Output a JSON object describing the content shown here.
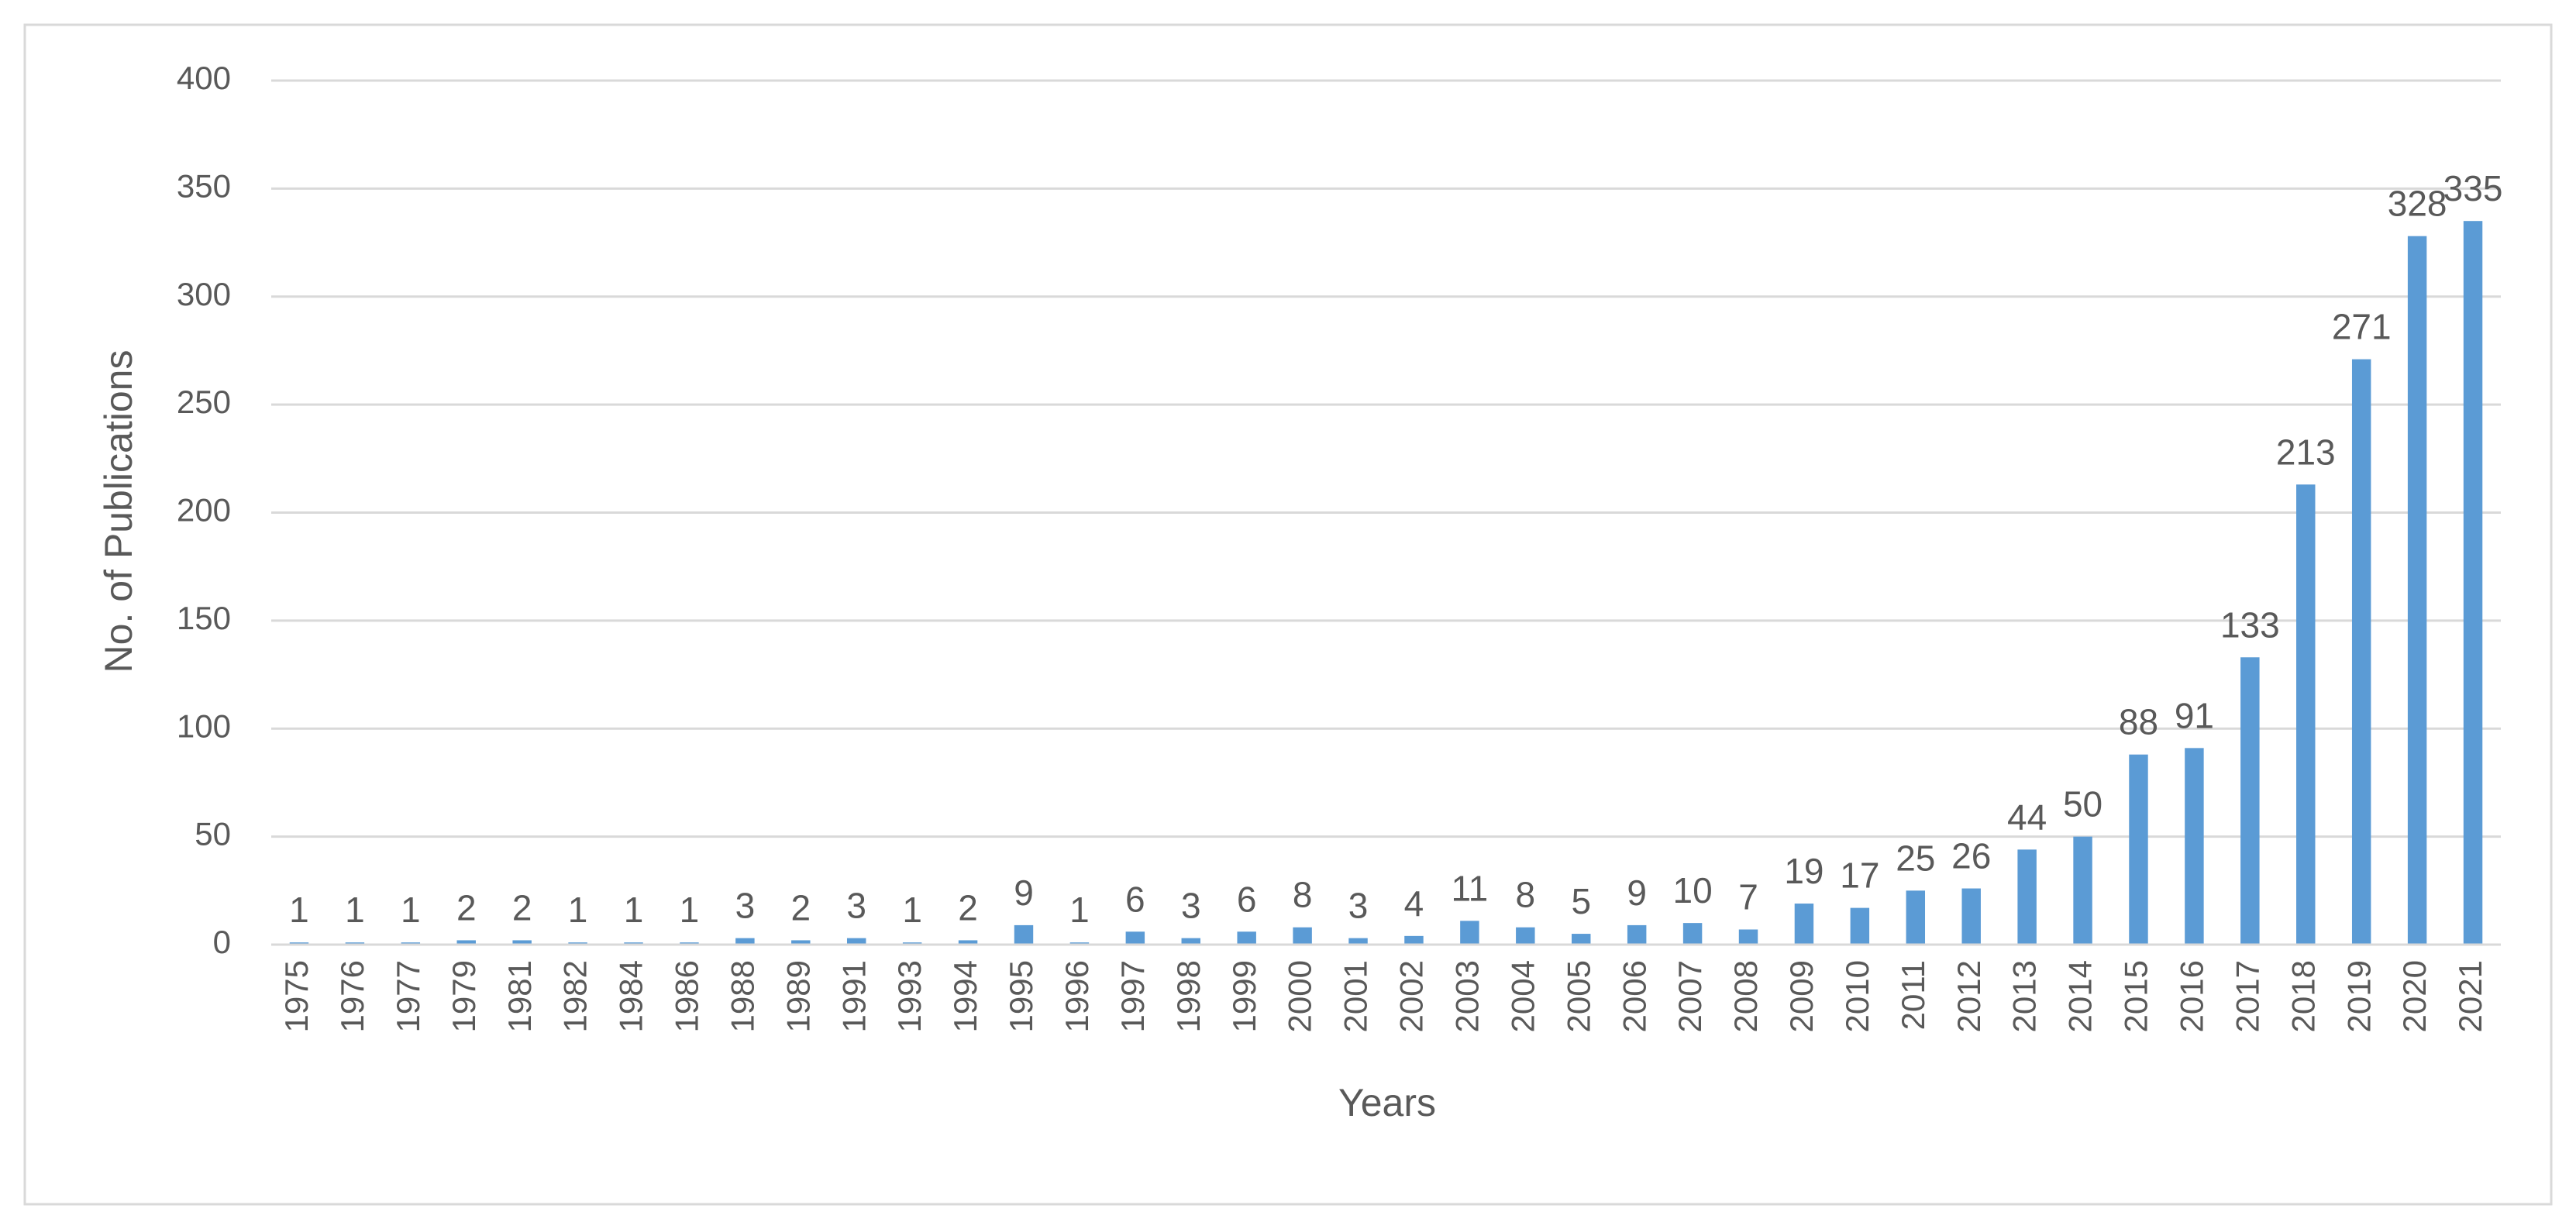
{
  "chart_data": {
    "type": "bar",
    "x_label": "Years",
    "y_label": "No. of Publications",
    "categories": [
      "1975",
      "1976",
      "1977",
      "1979",
      "1981",
      "1982",
      "1984",
      "1986",
      "1988",
      "1989",
      "1991",
      "1993",
      "1994",
      "1995",
      "1996",
      "1997",
      "1998",
      "1999",
      "2000",
      "2001",
      "2002",
      "2003",
      "2004",
      "2005",
      "2006",
      "2007",
      "2008",
      "2009",
      "2010",
      "2011",
      "2012",
      "2013",
      "2014",
      "2015",
      "2016",
      "2017",
      "2018",
      "2019",
      "2020",
      "2021"
    ],
    "values": [
      1,
      1,
      1,
      2,
      2,
      1,
      1,
      1,
      3,
      2,
      3,
      1,
      2,
      9,
      1,
      6,
      3,
      6,
      8,
      3,
      4,
      11,
      8,
      5,
      9,
      10,
      7,
      19,
      17,
      25,
      26,
      44,
      50,
      88,
      91,
      133,
      213,
      271,
      328,
      335
    ],
    "color": "#5b9bd5",
    "ylim": [
      0,
      400
    ],
    "yticks": [
      0,
      50,
      100,
      150,
      200,
      250,
      300,
      350,
      400
    ],
    "grid": true
  }
}
